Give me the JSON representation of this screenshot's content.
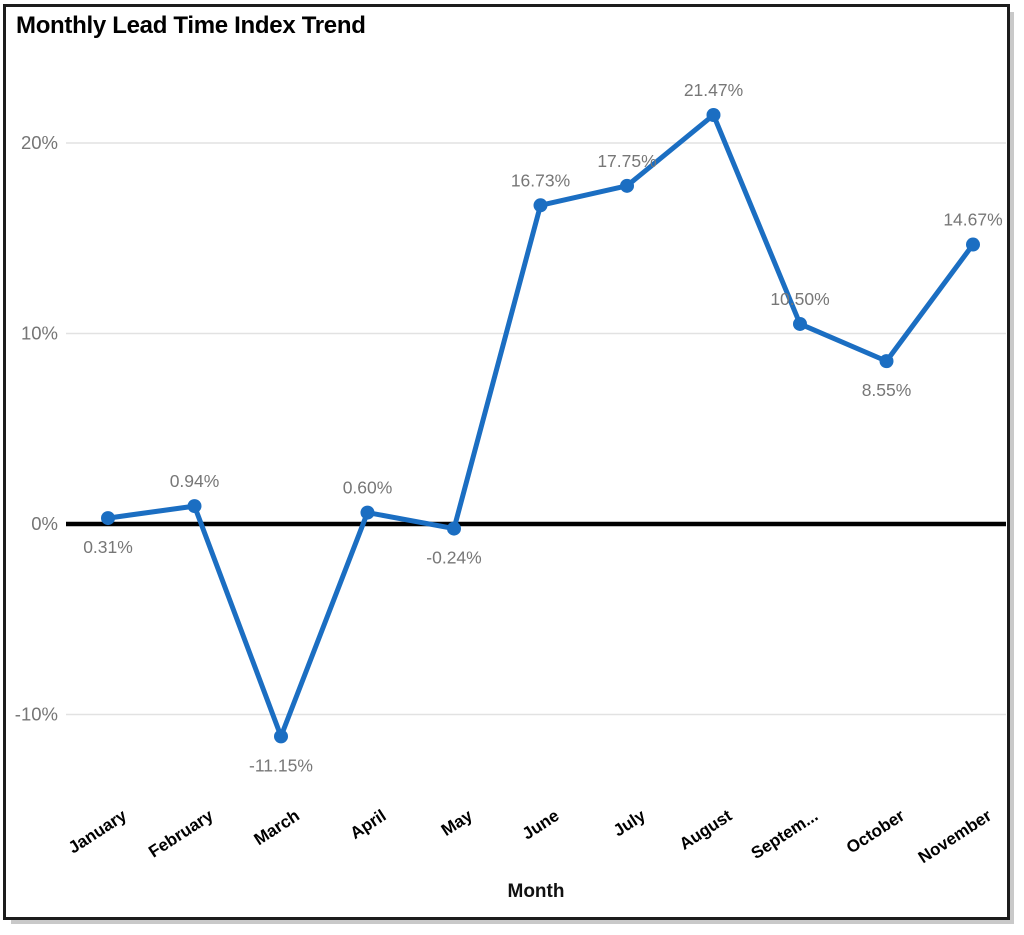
{
  "title": "Monthly Lead Time Index Trend",
  "chart_data": {
    "type": "line",
    "title": "Monthly Lead Time Index Trend",
    "xlabel": "Month",
    "ylabel": "",
    "categories": [
      "January",
      "February",
      "March",
      "April",
      "May",
      "June",
      "July",
      "August",
      "September",
      "October",
      "November"
    ],
    "category_display": [
      "January",
      "February",
      "March",
      "April",
      "May",
      "June",
      "July",
      "August",
      "Septem...",
      "October",
      "November"
    ],
    "values": [
      0.31,
      0.94,
      -11.15,
      0.6,
      -0.24,
      16.73,
      17.75,
      21.47,
      10.5,
      8.55,
      14.67
    ],
    "data_labels": [
      "0.31%",
      "0.94%",
      "-11.15%",
      "0.60%",
      "-0.24%",
      "16.73%",
      "17.75%",
      "21.47%",
      "10.50%",
      "8.55%",
      "14.67%"
    ],
    "label_side": [
      "below",
      "above",
      "below",
      "above",
      "below",
      "above",
      "above",
      "above",
      "above",
      "below",
      "above"
    ],
    "y_ticks": [
      {
        "value": 20,
        "label": "20%"
      },
      {
        "value": 10,
        "label": "10%"
      },
      {
        "value": 0,
        "label": "0%"
      },
      {
        "value": -10,
        "label": "-10%"
      }
    ],
    "ylim": [
      -15,
      25
    ],
    "grid": true,
    "legend": "none",
    "zero_line": true
  },
  "colors": {
    "line": "#1b6ec2",
    "marker": "#1b6ec2",
    "grid": "#e2e2e2",
    "zero_line": "#000000",
    "data_label": "#777777",
    "y_tick": "#757575",
    "x_label": "#000000",
    "border": "#1c1c1c"
  }
}
